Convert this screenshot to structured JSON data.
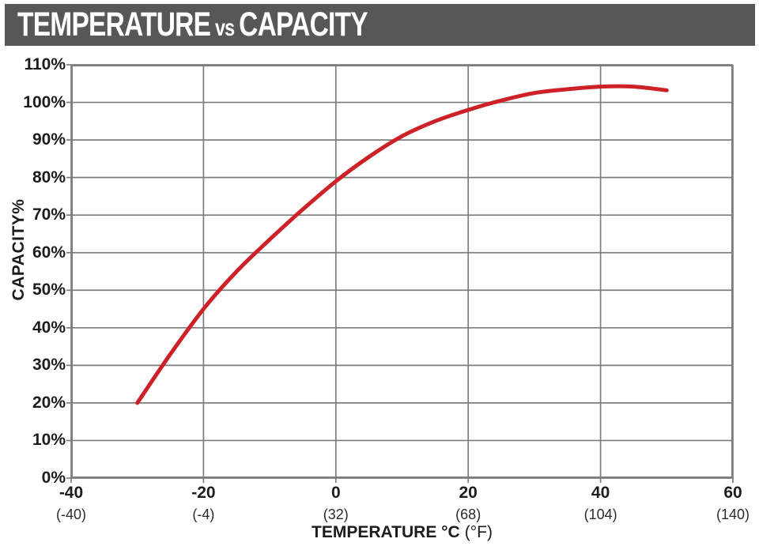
{
  "header": {
    "title_part1": "TEMPERATURE",
    "title_part2": "vs",
    "title_part3": "CAPACITY",
    "bg_color": "#575756",
    "text_color": "#ffffff"
  },
  "chart_data": {
    "type": "line",
    "title": "TEMPERATURE vs CAPACITY",
    "xlabel_bold": "TEMPERATURE °C",
    "xlabel_regular": "(°F)",
    "ylabel": "CAPACITY%",
    "xlim": [
      -40,
      60
    ],
    "ylim": [
      0,
      110
    ],
    "grid": true,
    "legend": "none",
    "x_tick_values": [
      -40,
      -20,
      0,
      20,
      40,
      60
    ],
    "x_tick_labels_celsius": [
      "-40",
      "-20",
      "0",
      "20",
      "40",
      "60"
    ],
    "x_tick_labels_fahrenheit": [
      "(-40)",
      "(-4)",
      "(32)",
      "(68)",
      "(104)",
      "(140)"
    ],
    "y_tick_values": [
      0,
      10,
      20,
      30,
      40,
      50,
      60,
      70,
      80,
      90,
      100,
      110
    ],
    "y_tick_labels": [
      "0%",
      "10%",
      "20%",
      "30%",
      "40%",
      "50%",
      "60%",
      "70%",
      "80%",
      "90%",
      "100%",
      "110%"
    ],
    "series": [
      {
        "name": "capacity-vs-temperature",
        "color": "#ce2127",
        "x": [
          -30,
          -25,
          -20,
          -15,
          -10,
          -5,
          0,
          5,
          10,
          15,
          20,
          25,
          30,
          35,
          40,
          45,
          50
        ],
        "y": [
          20,
          33,
          45,
          55,
          63.5,
          71.5,
          79,
          85.5,
          91,
          95,
          98,
          100.5,
          102.5,
          103.5,
          104.2,
          104.2,
          103.2
        ]
      }
    ],
    "grid_color": "#7d7d7d"
  }
}
